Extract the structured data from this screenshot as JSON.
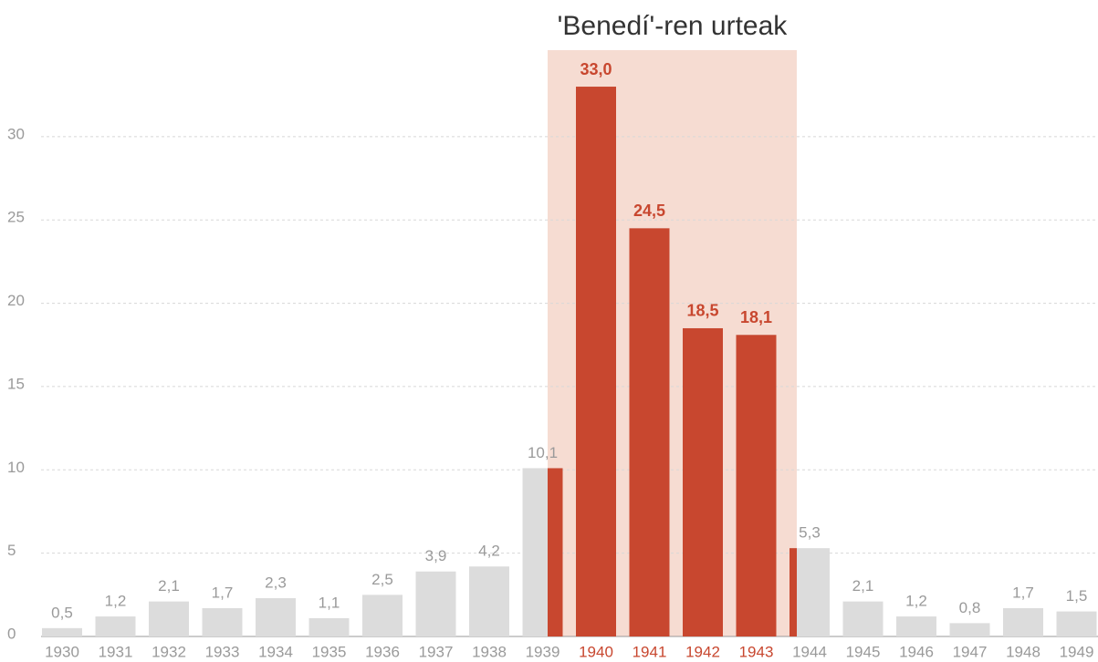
{
  "chart_data": {
    "type": "bar",
    "categories": [
      "1930",
      "1931",
      "1932",
      "1933",
      "1934",
      "1935",
      "1936",
      "1937",
      "1938",
      "1939",
      "1940",
      "1941",
      "1942",
      "1943",
      "1944",
      "1945",
      "1946",
      "1947",
      "1948",
      "1949"
    ],
    "values": [
      0.5,
      1.2,
      2.1,
      1.7,
      2.3,
      1.1,
      2.5,
      3.9,
      4.2,
      10.1,
      33.0,
      24.5,
      18.5,
      18.1,
      5.3,
      2.1,
      1.2,
      0.8,
      1.7,
      1.5
    ],
    "value_labels": [
      "0,5",
      "1,2",
      "2,1",
      "1,7",
      "2,3",
      "1,1",
      "2,5",
      "3,9",
      "4,2",
      "10,1",
      "33,0",
      "24,5",
      "18,5",
      "18,1",
      "5,3",
      "2,1",
      "1,2",
      "0,8",
      "1,7",
      "1,5"
    ],
    "color": "#dcdcdc",
    "ylim": [
      0,
      35
    ],
    "yticks": [
      0,
      5,
      10,
      15,
      20,
      25,
      30
    ],
    "grid": true,
    "highlight": {
      "label": "'Benedí'-ren urteak",
      "categories": [
        "1940",
        "1941",
        "1942",
        "1943"
      ],
      "color": "#c8472f",
      "band_color": "#f6dcd2"
    }
  }
}
